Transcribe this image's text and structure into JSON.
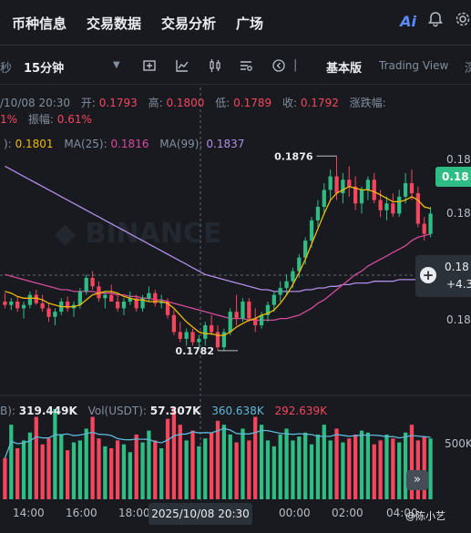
{
  "tabs": [
    "币种信息",
    "交易数据",
    "交易分析",
    "广场"
  ],
  "toolbar": {
    "left_partial": "秒",
    "interval": "15分钟",
    "view_basic": "基本版",
    "view_tv": "Trading View",
    "view_partial": "深"
  },
  "ohlc": {
    "date": "/10/08 20:30",
    "open_label": "开:",
    "open": "0.1793",
    "high_label": "高:",
    "high": "0.1800",
    "low_label": "低:",
    "low": "0.1789",
    "close_label": "收:",
    "close": "0.1792",
    "change_label": "涨跌幅:",
    "change_partial": "1%",
    "amp_label": "振幅:",
    "amp": "0.61%"
  },
  "ma": {
    "ma7_value": "0.1801",
    "ma25_label": "MA(25):",
    "ma25_value": "0.1816",
    "ma99_label": "MA(99):",
    "ma99_value": "0.1837"
  },
  "annotations": {
    "high_tag": "0.1876",
    "low_tag": "0.1782"
  },
  "price_axis": {
    "tag1": "0.18",
    "tag2": "0.18",
    "tag3": "0.18",
    "current_badge": "0.18",
    "cross_price": "0.18",
    "cross_change": "+4.3"
  },
  "volume": {
    "partial_label": "B):",
    "vol_b": "319.449K",
    "usdt_label": "Vol(USDT):",
    "vol_usdt": "57.307K",
    "ma_a": "360.638K",
    "ma_b": "292.639K",
    "axis_tag": "500K"
  },
  "time_axis": [
    "14:00",
    "16:00",
    "18:00",
    "00:00",
    "02:00",
    "04:00"
  ],
  "crosshair_date": "2025/10/08 20:30",
  "watermark": "@陈小艺",
  "colors": {
    "up": "#2ebd85",
    "down": "#f6465d",
    "ma7": "#f0b90b",
    "ma25": "#d64b9b",
    "ma99": "#b08ee8",
    "bg": "#181a20"
  },
  "chart_data": {
    "type": "candlestick",
    "candles": [
      [
        0.179,
        0.1795,
        0.1786,
        0.1788
      ],
      [
        0.1788,
        0.1792,
        0.1785,
        0.179
      ],
      [
        0.179,
        0.1793,
        0.1784,
        0.1786
      ],
      [
        0.1786,
        0.179,
        0.178,
        0.1788
      ],
      [
        0.1788,
        0.1796,
        0.1786,
        0.1794
      ],
      [
        0.1794,
        0.1797,
        0.1788,
        0.1789
      ],
      [
        0.1789,
        0.1794,
        0.1784,
        0.1786
      ],
      [
        0.1786,
        0.1789,
        0.1778,
        0.1781
      ],
      [
        0.1781,
        0.1786,
        0.1776,
        0.1784
      ],
      [
        0.1784,
        0.1792,
        0.1782,
        0.179
      ],
      [
        0.179,
        0.1793,
        0.1784,
        0.1786
      ],
      [
        0.1786,
        0.179,
        0.1781,
        0.1788
      ],
      [
        0.1788,
        0.1798,
        0.1786,
        0.1796
      ],
      [
        0.1796,
        0.1806,
        0.1794,
        0.1804
      ],
      [
        0.1804,
        0.1808,
        0.1797,
        0.1799
      ],
      [
        0.1799,
        0.1802,
        0.179,
        0.1792
      ],
      [
        0.1792,
        0.1796,
        0.1786,
        0.1794
      ],
      [
        0.1794,
        0.18,
        0.179,
        0.179
      ],
      [
        0.179,
        0.1795,
        0.1784,
        0.1786
      ],
      [
        0.1786,
        0.1792,
        0.1782,
        0.179
      ],
      [
        0.179,
        0.1796,
        0.1788,
        0.1792
      ],
      [
        0.1792,
        0.1794,
        0.1784,
        0.1786
      ],
      [
        0.1786,
        0.1794,
        0.1784,
        0.1792
      ],
      [
        0.1792,
        0.1799,
        0.179,
        0.1795
      ],
      [
        0.1795,
        0.1797,
        0.1787,
        0.1789
      ],
      [
        0.1789,
        0.1794,
        0.1786,
        0.179
      ],
      [
        0.179,
        0.1792,
        0.178,
        0.1782
      ],
      [
        0.1782,
        0.1785,
        0.177,
        0.1772
      ],
      [
        0.1772,
        0.1778,
        0.1766,
        0.1768
      ],
      [
        0.1768,
        0.1774,
        0.1764,
        0.1772
      ],
      [
        0.1772,
        0.1774,
        0.1764,
        0.1766
      ],
      [
        0.1766,
        0.177,
        0.1762,
        0.1768
      ],
      [
        0.1768,
        0.1778,
        0.1764,
        0.1776
      ],
      [
        0.1776,
        0.1782,
        0.177,
        0.1772
      ],
      [
        0.1772,
        0.1776,
        0.1761,
        0.1763
      ],
      [
        0.1763,
        0.1774,
        0.1761,
        0.1772
      ],
      [
        0.1772,
        0.1786,
        0.177,
        0.1784
      ],
      [
        0.1784,
        0.1794,
        0.1776,
        0.178
      ],
      [
        0.178,
        0.1792,
        0.1778,
        0.179
      ],
      [
        0.179,
        0.1792,
        0.1778,
        0.178
      ],
      [
        0.178,
        0.1786,
        0.1772,
        0.1776
      ],
      [
        0.1776,
        0.1784,
        0.1774,
        0.1782
      ],
      [
        0.1782,
        0.179,
        0.1778,
        0.1788
      ],
      [
        0.1788,
        0.1796,
        0.1784,
        0.1794
      ],
      [
        0.1794,
        0.1802,
        0.179,
        0.1798
      ],
      [
        0.1798,
        0.1806,
        0.1794,
        0.1802
      ],
      [
        0.1802,
        0.181,
        0.1798,
        0.1808
      ],
      [
        0.1808,
        0.1818,
        0.1804,
        0.1816
      ],
      [
        0.1816,
        0.1828,
        0.1812,
        0.1826
      ],
      [
        0.1826,
        0.184,
        0.1822,
        0.1838
      ],
      [
        0.1838,
        0.185,
        0.1834,
        0.1846
      ],
      [
        0.1846,
        0.186,
        0.1842,
        0.1856
      ],
      [
        0.1856,
        0.1868,
        0.185,
        0.1864
      ],
      [
        0.1864,
        0.1876,
        0.185,
        0.1854
      ],
      [
        0.1854,
        0.1866,
        0.1848,
        0.1862
      ],
      [
        0.1862,
        0.187,
        0.1852,
        0.1858
      ],
      [
        0.1858,
        0.1864,
        0.1844,
        0.1848
      ],
      [
        0.1848,
        0.1858,
        0.1842,
        0.1856
      ],
      [
        0.1856,
        0.1864,
        0.185,
        0.1862
      ],
      [
        0.1862,
        0.1866,
        0.1848,
        0.185
      ],
      [
        0.185,
        0.1856,
        0.184,
        0.1844
      ],
      [
        0.1844,
        0.1852,
        0.1838,
        0.1848
      ],
      [
        0.1848,
        0.1854,
        0.184,
        0.1842
      ],
      [
        0.1842,
        0.1856,
        0.184,
        0.1852
      ],
      [
        0.1852,
        0.1866,
        0.1848,
        0.186
      ],
      [
        0.186,
        0.1868,
        0.185,
        0.1854
      ],
      [
        0.1854,
        0.1858,
        0.1834,
        0.1836
      ],
      [
        0.1836,
        0.184,
        0.1826,
        0.183
      ],
      [
        0.183,
        0.1846,
        0.1828,
        0.1842
      ]
    ],
    "volume": [
      210,
      380,
      260,
      300,
      340,
      420,
      280,
      310,
      460,
      330,
      250,
      290,
      300,
      360,
      420,
      310,
      270,
      260,
      300,
      280,
      240,
      330,
      290,
      350,
      300,
      260,
      410,
      470,
      380,
      300,
      350,
      270,
      310,
      340,
      400,
      380,
      330,
      290,
      360,
      300,
      420,
      380,
      300,
      270,
      330,
      360,
      300,
      320,
      340,
      280,
      330,
      380,
      300,
      360,
      290,
      310,
      330,
      350,
      340,
      280,
      300,
      330,
      310,
      290,
      340,
      380,
      300,
      320,
      310
    ],
    "ma7": [
      0.1796,
      0.1795,
      0.1793,
      0.1792,
      0.1792,
      0.1792,
      0.1791,
      0.1789,
      0.1788,
      0.1787,
      0.1787,
      0.1787,
      0.1788,
      0.1791,
      0.1794,
      0.1795,
      0.1796,
      0.1796,
      0.1795,
      0.1793,
      0.1792,
      0.1791,
      0.1791,
      0.179,
      0.179,
      0.179,
      0.1789,
      0.1786,
      0.1782,
      0.1778,
      0.1775,
      0.1772,
      0.1771,
      0.1771,
      0.177,
      0.177,
      0.1772,
      0.1775,
      0.1777,
      0.1779,
      0.178,
      0.1782,
      0.1783,
      0.1785,
      0.1789,
      0.1794,
      0.18,
      0.1807,
      0.1815,
      0.1824,
      0.1833,
      0.1842,
      0.185,
      0.1854,
      0.1856,
      0.1858,
      0.1857,
      0.1856,
      0.1856,
      0.1855,
      0.1853,
      0.1851,
      0.1849,
      0.1849,
      0.185,
      0.1852,
      0.185,
      0.1846,
      0.1845
    ],
    "ma25": [
      0.1806,
      0.1805,
      0.1804,
      0.1803,
      0.1802,
      0.1801,
      0.18,
      0.1799,
      0.1798,
      0.1797,
      0.1797,
      0.1796,
      0.1796,
      0.1796,
      0.1796,
      0.1795,
      0.1795,
      0.1795,
      0.1794,
      0.1794,
      0.1793,
      0.1793,
      0.1792,
      0.1792,
      0.1791,
      0.1791,
      0.179,
      0.1789,
      0.1788,
      0.1787,
      0.1786,
      0.1785,
      0.1784,
      0.1783,
      0.1782,
      0.1781,
      0.178,
      0.178,
      0.178,
      0.1779,
      0.1779,
      0.1779,
      0.1779,
      0.1779,
      0.178,
      0.178,
      0.1781,
      0.1782,
      0.1784,
      0.1786,
      0.1789,
      0.1791,
      0.1794,
      0.1797,
      0.18,
      0.1803,
      0.1806,
      0.1808,
      0.1811,
      0.1813,
      0.1815,
      0.1817,
      0.1819,
      0.1821,
      0.1823,
      0.1826,
      0.1828,
      0.1829,
      0.183
    ],
    "ma99": [
      0.187,
      0.1868,
      0.1866,
      0.1864,
      0.1862,
      0.186,
      0.1858,
      0.1856,
      0.1854,
      0.1852,
      0.185,
      0.1848,
      0.1846,
      0.1844,
      0.1842,
      0.184,
      0.1838,
      0.1836,
      0.1834,
      0.1832,
      0.183,
      0.1828,
      0.1826,
      0.1824,
      0.1822,
      0.182,
      0.1818,
      0.1816,
      0.1814,
      0.1812,
      0.181,
      0.1808,
      0.1806,
      0.1805,
      0.1804,
      0.1803,
      0.1802,
      0.1801,
      0.18,
      0.1799,
      0.1798,
      0.1797,
      0.1797,
      0.1796,
      0.1796,
      0.1796,
      0.1796,
      0.1796,
      0.1797,
      0.1797,
      0.1798,
      0.1798,
      0.1799,
      0.1799,
      0.18,
      0.18,
      0.1801,
      0.1801,
      0.1801,
      0.1802,
      0.1802,
      0.1802,
      0.1802,
      0.1803,
      0.1803,
      0.1803,
      0.1803,
      0.1803,
      0.1803
    ],
    "price_range": [
      0.1755,
      0.1895
    ]
  }
}
